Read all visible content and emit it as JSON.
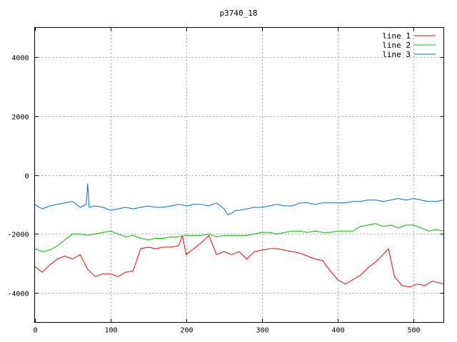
{
  "chart_data": {
    "type": "line",
    "title": "p3740_18",
    "xlabel": "",
    "ylabel": "",
    "xlim": [
      0,
      540
    ],
    "ylim": [
      -5000,
      5000
    ],
    "xticks": [
      0,
      100,
      200,
      300,
      400,
      500
    ],
    "yticks": [
      -4000,
      -2000,
      0,
      2000,
      4000
    ],
    "grid": true,
    "legend_position": "top-right",
    "series": [
      {
        "name": "line 1",
        "color": "#ff0000",
        "x": [
          0,
          10,
          20,
          30,
          40,
          50,
          60,
          70,
          80,
          90,
          100,
          110,
          120,
          130,
          140,
          150,
          160,
          170,
          180,
          190,
          195,
          200,
          210,
          220,
          230,
          240,
          250,
          260,
          270,
          280,
          290,
          300,
          310,
          320,
          330,
          340,
          350,
          360,
          370,
          380,
          390,
          400,
          410,
          420,
          430,
          440,
          450,
          460,
          467,
          475,
          485,
          495,
          505,
          515,
          525,
          540
        ],
        "y": [
          -3100,
          -3300,
          -3050,
          -2850,
          -2750,
          -2850,
          -2700,
          -3200,
          -3450,
          -3350,
          -3350,
          -3450,
          -3300,
          -3250,
          -2500,
          -2450,
          -2500,
          -2450,
          -2450,
          -2400,
          -2050,
          -2700,
          -2500,
          -2300,
          -2050,
          -2700,
          -2600,
          -2700,
          -2600,
          -2850,
          -2600,
          -2550,
          -2500,
          -2500,
          -2550,
          -2600,
          -2650,
          -2750,
          -2850,
          -2900,
          -3250,
          -3550,
          -3700,
          -3550,
          -3400,
          -3150,
          -2950,
          -2700,
          -2500,
          -3450,
          -3750,
          -3800,
          -3700,
          -3750,
          -3600,
          -3700
        ]
      },
      {
        "name": "line 2",
        "color": "#00c000",
        "x": [
          0,
          10,
          20,
          30,
          40,
          50,
          60,
          70,
          80,
          90,
          100,
          110,
          120,
          130,
          140,
          150,
          160,
          170,
          180,
          190,
          200,
          210,
          220,
          230,
          240,
          250,
          260,
          270,
          280,
          290,
          300,
          310,
          320,
          330,
          340,
          350,
          360,
          370,
          380,
          390,
          400,
          410,
          420,
          430,
          440,
          450,
          460,
          470,
          480,
          490,
          500,
          510,
          520,
          530,
          540
        ],
        "y": [
          -2500,
          -2600,
          -2550,
          -2400,
          -2200,
          -2000,
          -2000,
          -2050,
          -2000,
          -1950,
          -1900,
          -2000,
          -2100,
          -2050,
          -2150,
          -2200,
          -2150,
          -2150,
          -2100,
          -2100,
          -2050,
          -2050,
          -2050,
          -2000,
          -2100,
          -2050,
          -2050,
          -2050,
          -2050,
          -2000,
          -1950,
          -1950,
          -2000,
          -1950,
          -1900,
          -1900,
          -1950,
          -1900,
          -1950,
          -1950,
          -1900,
          -1900,
          -1900,
          -1750,
          -1700,
          -1650,
          -1750,
          -1700,
          -1800,
          -1700,
          -1700,
          -1800,
          -1900,
          -1850,
          -1900
        ]
      },
      {
        "name": "line 3",
        "color": "#0070d0",
        "x": [
          0,
          10,
          20,
          30,
          40,
          50,
          60,
          68,
          70,
          72,
          80,
          90,
          100,
          110,
          120,
          130,
          140,
          150,
          160,
          170,
          180,
          190,
          200,
          210,
          220,
          230,
          240,
          250,
          255,
          260,
          265,
          270,
          280,
          290,
          300,
          310,
          320,
          330,
          340,
          350,
          360,
          370,
          380,
          390,
          400,
          410,
          420,
          430,
          440,
          450,
          460,
          470,
          480,
          490,
          500,
          510,
          520,
          530,
          540
        ],
        "y": [
          -1000,
          -1150,
          -1050,
          -1000,
          -950,
          -900,
          -1100,
          -1000,
          -300,
          -1100,
          -1050,
          -1100,
          -1200,
          -1150,
          -1100,
          -1150,
          -1100,
          -1050,
          -1100,
          -1100,
          -1050,
          -1000,
          -1050,
          -1000,
          -1000,
          -1050,
          -950,
          -1150,
          -1350,
          -1300,
          -1200,
          -1200,
          -1150,
          -1100,
          -1100,
          -1050,
          -1000,
          -1050,
          -1050,
          -950,
          -950,
          -1000,
          -950,
          -950,
          -950,
          -950,
          -900,
          -900,
          -850,
          -850,
          -900,
          -850,
          -800,
          -850,
          -800,
          -850,
          -900,
          -900,
          -850
        ]
      }
    ]
  }
}
